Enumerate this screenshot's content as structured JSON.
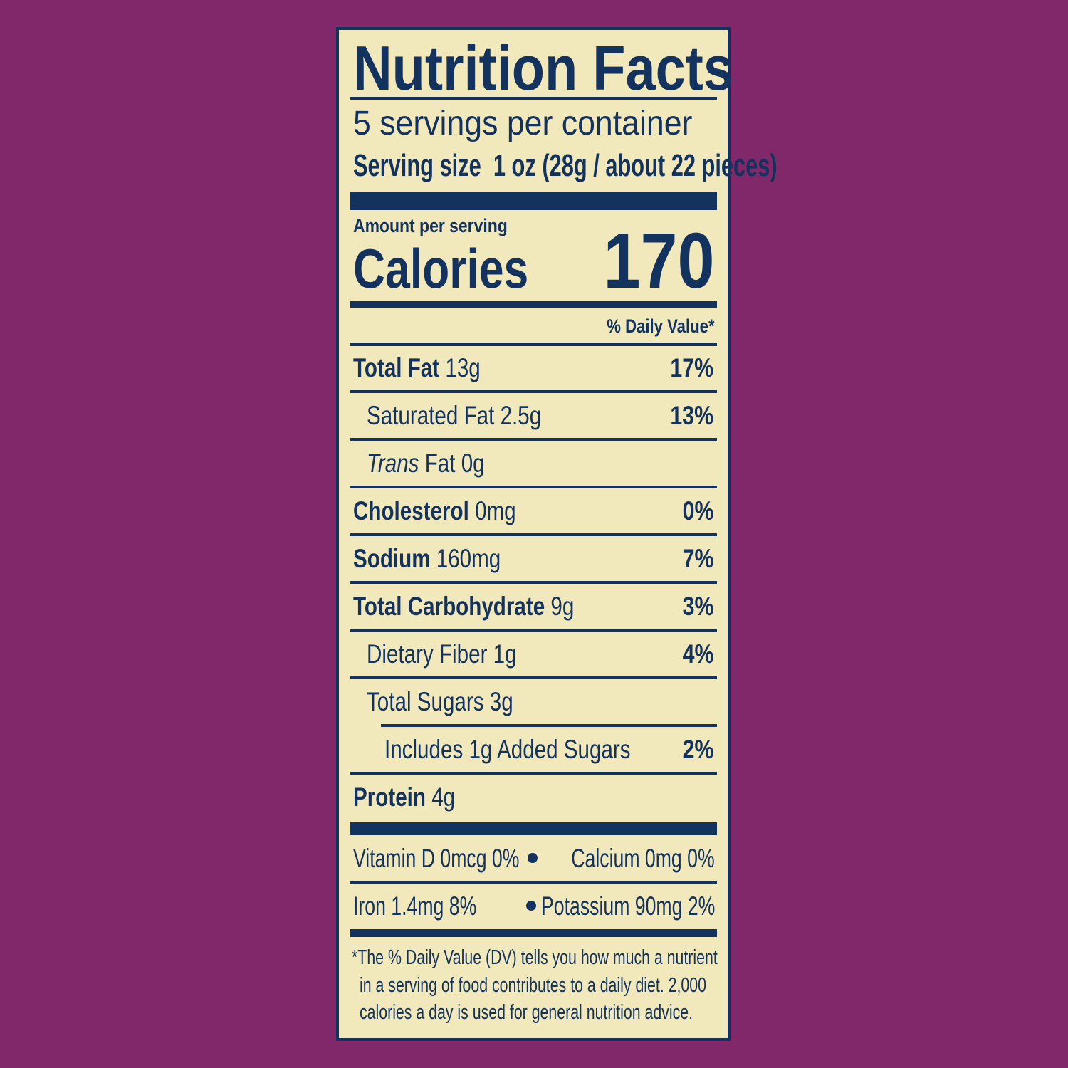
{
  "colors": {
    "background": "#80286a",
    "panel": "#f1e9bb",
    "ink": "#14325e"
  },
  "title": "Nutrition Facts",
  "servings_per_container": "5 servings per container",
  "serving_size_label": "Serving size",
  "serving_size_value": "1 oz (28g / about 22 pieces)",
  "amount_per_serving": "Amount per serving",
  "calories_label": "Calories",
  "calories_value": "170",
  "dv_header": "% Daily Value*",
  "nutrients": [
    {
      "name": "Total Fat",
      "amount": "13g",
      "dv": "17%"
    },
    {
      "name": "Saturated Fat",
      "amount": "2.5g",
      "dv": "13%"
    },
    {
      "name_italic": "Trans",
      "name": "Fat",
      "amount": "0g",
      "dv": ""
    },
    {
      "name": "Cholesterol",
      "amount": "0mg",
      "dv": "0%"
    },
    {
      "name": "Sodium",
      "amount": "160mg",
      "dv": "7%"
    },
    {
      "name": "Total Carbohydrate",
      "amount": "9g",
      "dv": "3%"
    },
    {
      "name": "Dietary Fiber",
      "amount": "1g",
      "dv": "4%"
    },
    {
      "name": "Total Sugars",
      "amount": "3g",
      "dv": ""
    },
    {
      "name": "Includes 1g Added Sugars",
      "amount": "",
      "dv": "2%"
    },
    {
      "name": "Protein",
      "amount": "4g",
      "dv": ""
    }
  ],
  "vitamins": [
    "Vitamin D 0mcg 0%",
    "Calcium 0mg 0%",
    "Iron 1.4mg 8%",
    "Potassium 90mg 2%"
  ],
  "footnote": [
    "*The % Daily Value (DV) tells you how much a nutrient",
    "in a serving of food contributes to a daily diet. 2,000",
    "calories a day is used for general nutrition advice."
  ]
}
